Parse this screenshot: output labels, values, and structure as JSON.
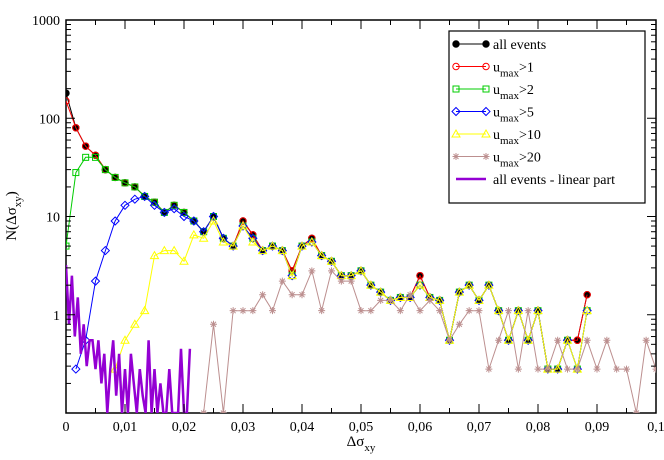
{
  "chart_data": {
    "type": "line",
    "title": "",
    "xlabel": {
      "main": "Δσ",
      "sub": "xy"
    },
    "ylabel": {
      "prefix": "N(",
      "main": "Δσ",
      "sub": "xy",
      "suffix": ")"
    },
    "xlim": [
      0,
      0.1
    ],
    "ylim": [
      0.1,
      1000
    ],
    "yscale": "log",
    "grid": false,
    "legend_position": "top-right",
    "x_ticks": [
      {
        "v": 0,
        "label": "0"
      },
      {
        "v": 0.01,
        "label": "0,01"
      },
      {
        "v": 0.02,
        "label": "0,02"
      },
      {
        "v": 0.03,
        "label": "0,03"
      },
      {
        "v": 0.04,
        "label": "0,04"
      },
      {
        "v": 0.05,
        "label": "0,05"
      },
      {
        "v": 0.06,
        "label": "0,06"
      },
      {
        "v": 0.07,
        "label": "0,07"
      },
      {
        "v": 0.08,
        "label": "0,08"
      },
      {
        "v": 0.09,
        "label": "0,09"
      },
      {
        "v": 0.1,
        "label": "0,1"
      }
    ],
    "y_ticks": [
      {
        "v": 1,
        "label": "1"
      },
      {
        "v": 10,
        "label": "10"
      },
      {
        "v": 100,
        "label": "100"
      },
      {
        "v": 1000,
        "label": "1000"
      }
    ],
    "series": [
      {
        "name": "all events",
        "name_parts": [
          "all events",
          "",
          ""
        ],
        "color": "#000000",
        "marker": "filled-circle",
        "x": [
          0.0,
          0.00167,
          0.00333,
          0.005,
          0.00667,
          0.00833,
          0.01,
          0.01167,
          0.01333,
          0.015,
          0.01667,
          0.01833,
          0.02,
          0.02167,
          0.02333,
          0.025,
          0.02667,
          0.02833,
          0.03,
          0.03167,
          0.03333,
          0.035,
          0.03667,
          0.03833,
          0.04,
          0.04167,
          0.04333,
          0.045,
          0.04667,
          0.04833,
          0.05,
          0.05167,
          0.05333,
          0.055,
          0.05667,
          0.05833,
          0.06,
          0.06167,
          0.06333,
          0.065,
          0.06667,
          0.06833,
          0.07,
          0.07167,
          0.07333,
          0.075,
          0.07667,
          0.07833,
          0.08,
          0.08167,
          0.08333,
          0.085,
          0.08667,
          0.08833
        ],
        "y": [
          180,
          80,
          52,
          42,
          30,
          25,
          22,
          20,
          16,
          14,
          11,
          13,
          11,
          9,
          7,
          10,
          6,
          5,
          9,
          6.5,
          4.5,
          5,
          4.5,
          2.8,
          5,
          6,
          4,
          3.5,
          2.5,
          2.5,
          2.8,
          2,
          1.7,
          1.4,
          1.5,
          1.5,
          2.5,
          1.5,
          1.4,
          0.55,
          1.7,
          2,
          1.4,
          2,
          1.1,
          0.55,
          1.1,
          0.55,
          1.1,
          0.28,
          0.28,
          0.55,
          0.55,
          1.6
        ]
      },
      {
        "name": "umax>1",
        "name_parts": [
          "u",
          "max",
          ">1"
        ],
        "color": "#ff0000",
        "marker": "open-circle",
        "x": [
          0.0,
          0.00167,
          0.00333,
          0.005,
          0.00667,
          0.00833,
          0.01,
          0.01167,
          0.01333,
          0.015,
          0.01667,
          0.01833,
          0.02,
          0.02167,
          0.02333,
          0.025,
          0.02667,
          0.02833,
          0.03,
          0.03167,
          0.03333,
          0.035,
          0.03667,
          0.03833,
          0.04,
          0.04167,
          0.04333,
          0.045,
          0.04667,
          0.04833,
          0.05,
          0.05167,
          0.05333,
          0.055,
          0.05667,
          0.05833,
          0.06,
          0.06167,
          0.06333,
          0.065,
          0.06667,
          0.06833,
          0.07,
          0.07167,
          0.07333,
          0.075,
          0.07667,
          0.07833,
          0.08,
          0.08167,
          0.08333,
          0.085,
          0.08667,
          0.08833
        ],
        "y": [
          150,
          80,
          52,
          42,
          30,
          25,
          22,
          20,
          16,
          14,
          11,
          13,
          11,
          9,
          7,
          10,
          6,
          5,
          9,
          6.5,
          4.5,
          5,
          4.5,
          2.8,
          5,
          6,
          4,
          3.5,
          2.5,
          2.5,
          2.8,
          2,
          1.7,
          1.4,
          1.5,
          1.5,
          2.5,
          1.5,
          1.4,
          0.55,
          1.7,
          2,
          1.4,
          2,
          1.1,
          0.55,
          1.1,
          0.55,
          1.1,
          0.28,
          0.28,
          0.55,
          0.55,
          1.6
        ]
      },
      {
        "name": "umax>2",
        "name_parts": [
          "u",
          "max",
          ">2"
        ],
        "color": "#00cc00",
        "marker": "open-square",
        "x": [
          0.0,
          0.00167,
          0.00333,
          0.005,
          0.00667,
          0.00833,
          0.01,
          0.01167,
          0.01333,
          0.015,
          0.01667,
          0.01833,
          0.02,
          0.02167,
          0.02333,
          0.025,
          0.02667,
          0.02833,
          0.03,
          0.03167,
          0.03333,
          0.035,
          0.03667,
          0.03833,
          0.04,
          0.04167,
          0.04333,
          0.045,
          0.04667,
          0.04833,
          0.05,
          0.05167,
          0.05333,
          0.055,
          0.05667,
          0.05833,
          0.06,
          0.06167,
          0.06333,
          0.065,
          0.06667,
          0.06833,
          0.07,
          0.07167,
          0.07333,
          0.075,
          0.07667,
          0.07833,
          0.08,
          0.08167,
          0.08333,
          0.085,
          0.08667,
          0.08833
        ],
        "y": [
          5,
          28,
          40,
          40,
          30,
          25,
          22,
          20,
          16,
          14,
          11,
          13,
          11,
          9,
          7,
          10,
          6,
          5,
          8,
          6,
          4.5,
          5,
          4.5,
          2.5,
          5,
          5.5,
          4,
          3.5,
          2.5,
          2.5,
          2.8,
          2,
          1.7,
          1.4,
          1.5,
          1.5,
          2,
          1.5,
          1.4,
          0.55,
          1.7,
          2,
          1.4,
          2,
          1.1,
          0.55,
          1.1,
          0.55,
          1.1,
          0.28,
          0.28,
          0.55,
          0.28,
          1.1
        ]
      },
      {
        "name": "umax>5",
        "name_parts": [
          "u",
          "max",
          ">5"
        ],
        "color": "#0000ff",
        "marker": "open-diamond",
        "x": [
          0.00167,
          0.00333,
          0.005,
          0.00667,
          0.00833,
          0.01,
          0.01167,
          0.01333,
          0.015,
          0.01667,
          0.01833,
          0.02,
          0.02167,
          0.02333,
          0.025,
          0.02667,
          0.02833,
          0.03,
          0.03167,
          0.03333,
          0.035,
          0.03667,
          0.03833,
          0.04,
          0.04167,
          0.04333,
          0.045,
          0.04667,
          0.04833,
          0.05,
          0.05167,
          0.05333,
          0.055,
          0.05667,
          0.05833,
          0.06,
          0.06167,
          0.06333,
          0.065,
          0.06667,
          0.06833,
          0.07,
          0.07167,
          0.07333,
          0.075,
          0.07667,
          0.07833,
          0.08,
          0.08167,
          0.08333,
          0.085,
          0.08667,
          0.08833
        ],
        "y": [
          0.28,
          0.55,
          2.2,
          4.5,
          9,
          13,
          15,
          16,
          13,
          11,
          12,
          10,
          9,
          7,
          10,
          6,
          5,
          8,
          6,
          4.5,
          5,
          4.5,
          2.5,
          5,
          5.5,
          4,
          3.5,
          2.5,
          2.5,
          2.8,
          2,
          1.7,
          1.4,
          1.5,
          1.5,
          2,
          1.5,
          1.4,
          0.55,
          1.7,
          2,
          1.4,
          2,
          1.1,
          0.55,
          1.1,
          0.55,
          1.1,
          0.28,
          0.28,
          0.55,
          0.28,
          1.1
        ]
      },
      {
        "name": "umax>10",
        "name_parts": [
          "u",
          "max",
          ">10"
        ],
        "color": "#ffff00",
        "marker": "open-triangle",
        "x": [
          0.00833,
          0.01,
          0.01167,
          0.01333,
          0.015,
          0.01667,
          0.01833,
          0.02,
          0.02167,
          0.02333,
          0.025,
          0.02667,
          0.02833,
          0.03,
          0.03167,
          0.03333,
          0.035,
          0.03667,
          0.03833,
          0.04,
          0.04167,
          0.04333,
          0.045,
          0.04667,
          0.04833,
          0.05,
          0.05167,
          0.05333,
          0.055,
          0.05667,
          0.05833,
          0.06,
          0.06167,
          0.06333,
          0.065,
          0.06667,
          0.06833,
          0.07,
          0.07167,
          0.07333,
          0.075,
          0.07667,
          0.07833,
          0.08,
          0.08167,
          0.08333,
          0.085,
          0.08667,
          0.08833
        ],
        "y": [
          0.28,
          0.55,
          0.8,
          1.1,
          4,
          4.5,
          4.5,
          3.5,
          6.5,
          6,
          9,
          5.5,
          5,
          8,
          5.5,
          4.5,
          5,
          4.5,
          2.5,
          5,
          5.5,
          4,
          3.5,
          2.5,
          2.5,
          2.8,
          2,
          1.7,
          1.4,
          1.5,
          1.5,
          2,
          1.5,
          1.4,
          0.55,
          1.7,
          2,
          1.4,
          2,
          1.1,
          0.55,
          1.1,
          0.55,
          1.1,
          0.28,
          0.28,
          0.55,
          0.28,
          1.1
        ]
      },
      {
        "name": "umax>20",
        "name_parts": [
          "u",
          "max",
          ">20"
        ],
        "color": "#bc8f8f",
        "marker": "star",
        "x": [
          0.02333,
          0.025,
          0.02667,
          0.02833,
          0.03,
          0.03167,
          0.03333,
          0.035,
          0.03667,
          0.03833,
          0.04,
          0.04167,
          0.04333,
          0.045,
          0.04667,
          0.04833,
          0.05,
          0.05167,
          0.05333,
          0.055,
          0.05667,
          0.05833,
          0.06,
          0.06167,
          0.06333,
          0.065,
          0.06667,
          0.06833,
          0.07,
          0.07167,
          0.07333,
          0.075,
          0.07667,
          0.07833,
          0.08,
          0.08167,
          0.08333,
          0.085,
          0.08667,
          0.08833,
          0.09,
          0.09167,
          0.09333,
          0.095,
          0.09667,
          0.09833,
          0.1
        ],
        "y": [
          0.1,
          0.8,
          0.1,
          1.1,
          1.1,
          1.1,
          1.6,
          1.1,
          2.2,
          1.6,
          1.6,
          2.8,
          1.1,
          2.8,
          2.2,
          2.2,
          1.1,
          1.1,
          1.4,
          1.4,
          1.1,
          1.6,
          1.1,
          1.4,
          1.1,
          0.55,
          0.8,
          1.1,
          1.1,
          0.28,
          0.55,
          1.1,
          0.28,
          1.1,
          0.28,
          0.28,
          0.55,
          0.28,
          0.28,
          0.55,
          0.28,
          0.55,
          0.28,
          0.28,
          0.1,
          0.55,
          0.28
        ]
      },
      {
        "name": "all events - linear part",
        "name_parts": [
          "all events - linear part",
          "",
          ""
        ],
        "color": "#9400d3",
        "marker": "none",
        "x": [
          0.0,
          0.0005,
          0.001,
          0.0015,
          0.002,
          0.0025,
          0.003,
          0.0035,
          0.004,
          0.0045,
          0.005,
          0.0055,
          0.006,
          0.0065,
          0.007,
          0.0075,
          0.008,
          0.0085,
          0.009,
          0.0095,
          0.01,
          0.0105,
          0.011,
          0.0115,
          0.012,
          0.0125,
          0.013,
          0.0135,
          0.014,
          0.0145,
          0.015,
          0.0155,
          0.016,
          0.0165,
          0.017,
          0.0175,
          0.018,
          0.0185,
          0.019,
          0.0195,
          0.02,
          0.0205,
          0.021
        ],
        "y": [
          3.2,
          0.8,
          2.5,
          0.6,
          1.5,
          0.4,
          0.8,
          0.3,
          0.55,
          0.55,
          0.28,
          0.55,
          0.2,
          0.4,
          0.1,
          0.28,
          0.55,
          0.15,
          0.4,
          0.1,
          0.28,
          0.1,
          0.4,
          0.2,
          0.1,
          0.28,
          0.15,
          0.1,
          0.55,
          0.1,
          0.28,
          0.1,
          0.2,
          0.1,
          0.1,
          0.28,
          0.1,
          0.1,
          0.1,
          0.45,
          0.1,
          0.1,
          0.45
        ]
      }
    ]
  }
}
